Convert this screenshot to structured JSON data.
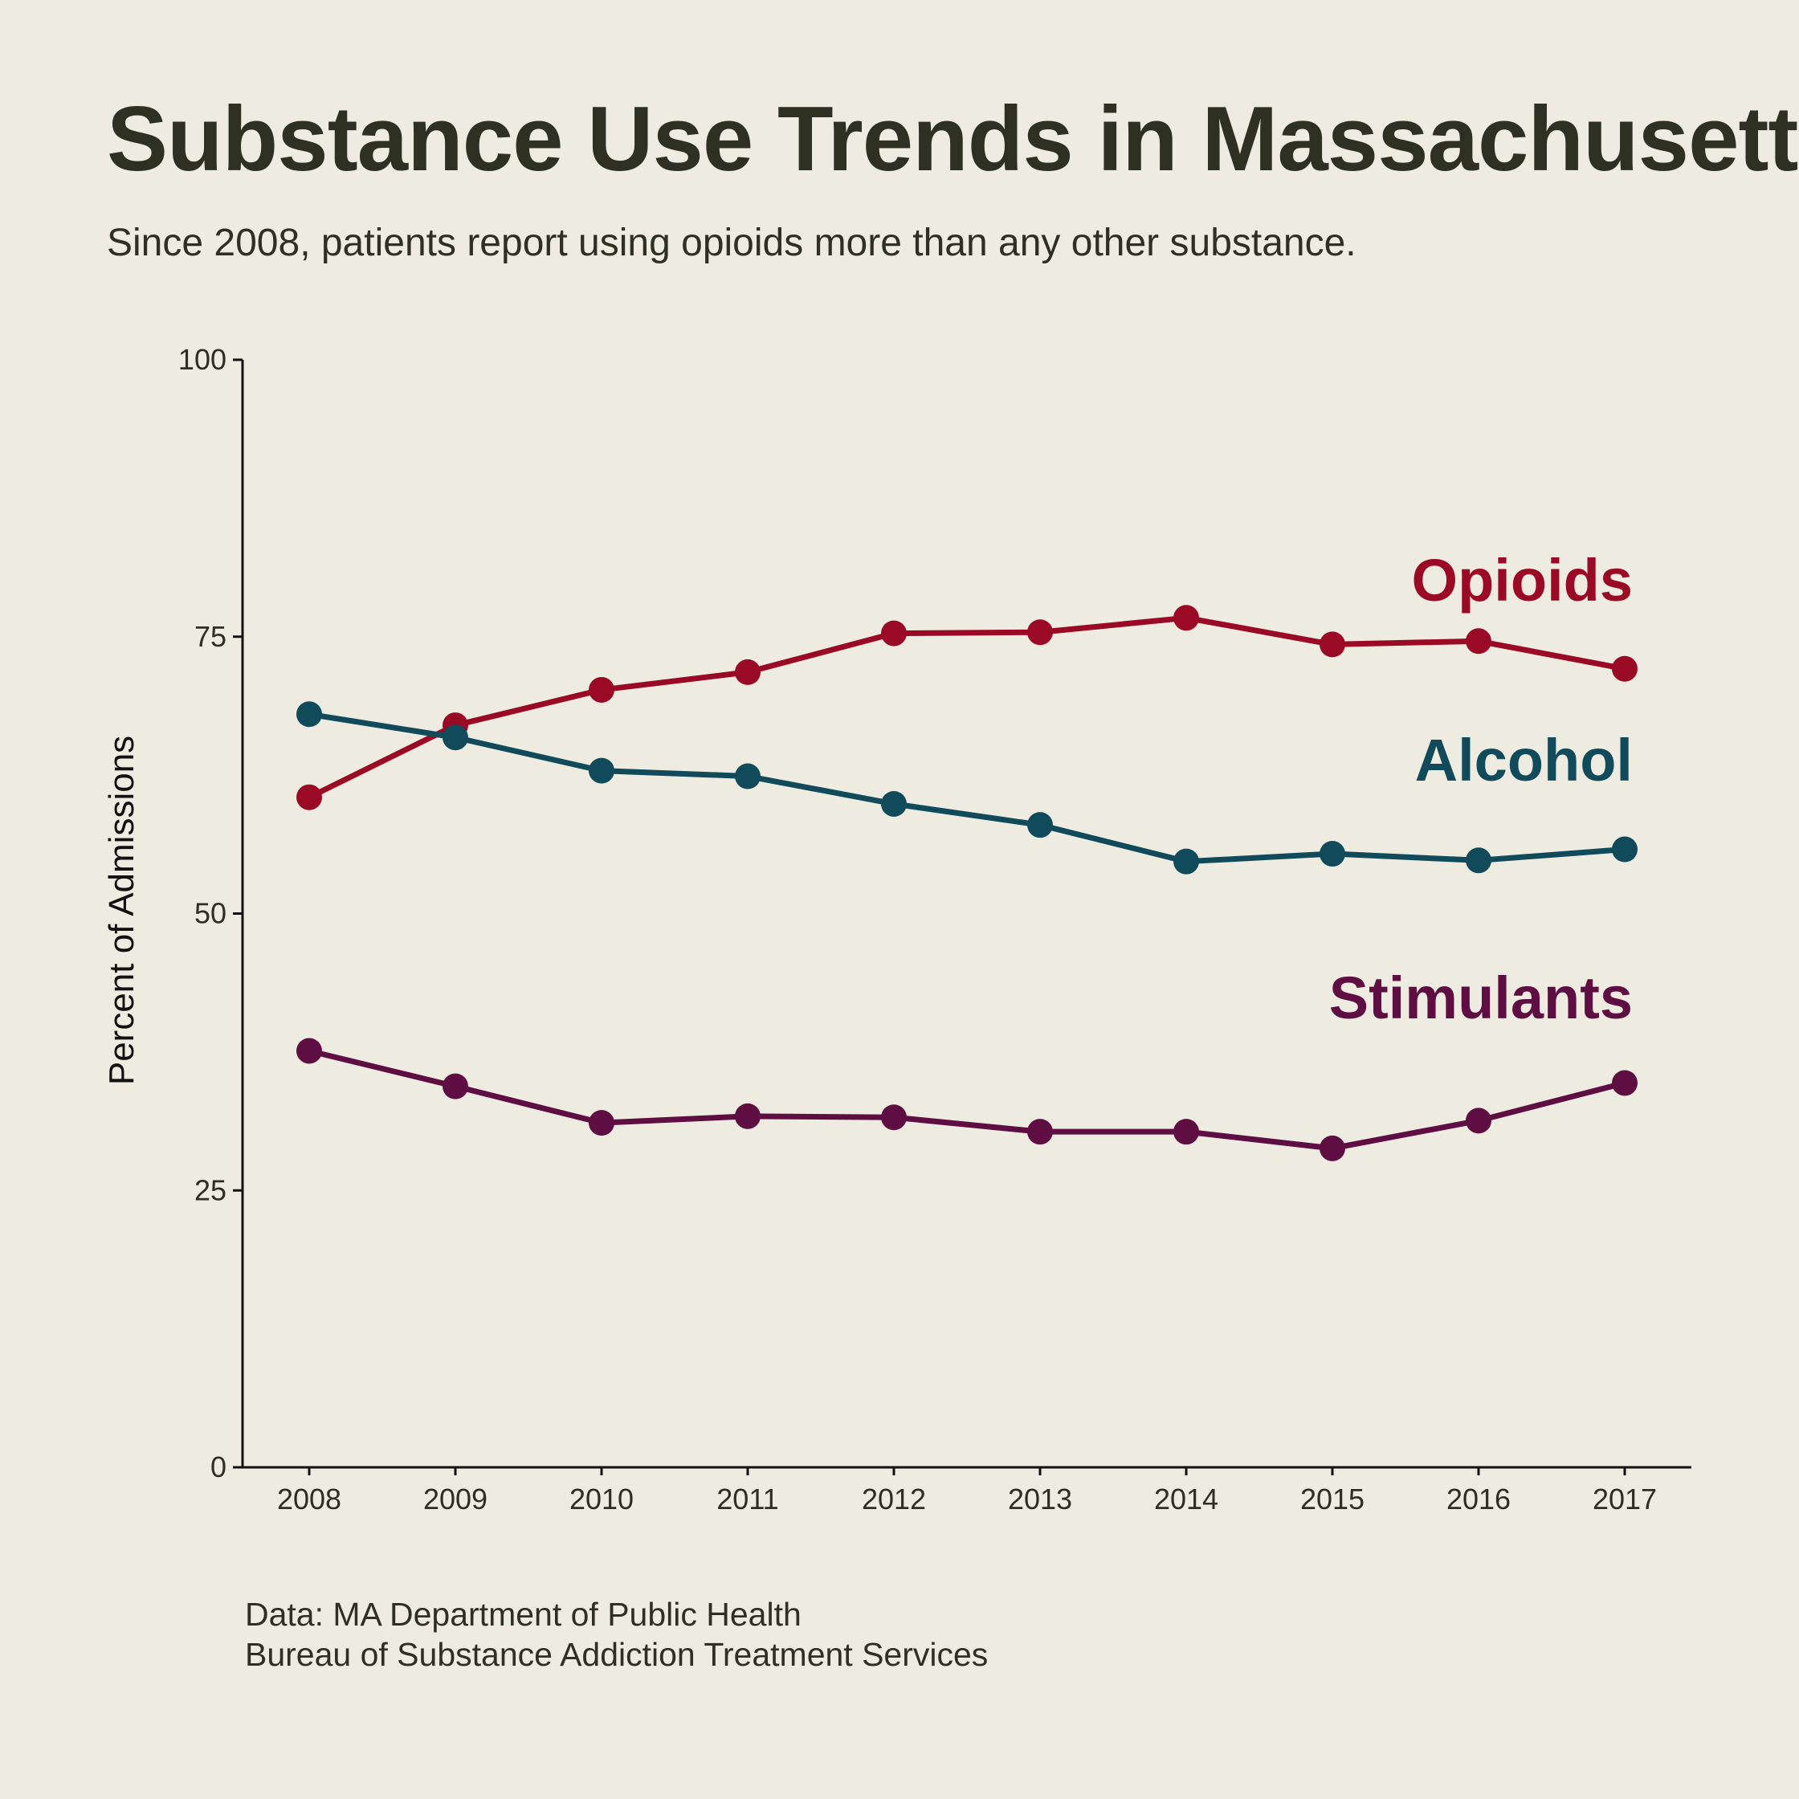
{
  "title": "Substance Use Trends in Massachusetts",
  "subtitle": "Since 2008, patients report using opioids more than any other substance.",
  "source": {
    "line1": "Data: MA Department of Public Health",
    "line2": "Bureau of Substance Addiction Treatment Services"
  },
  "chart_data": {
    "type": "line",
    "title": "Substance Use Trends in Massachusetts",
    "subtitle": "Since 2008, patients report using opioids more than any other substance.",
    "xlabel": "",
    "ylabel": "Percent of Admissions",
    "ylim": [
      0,
      100
    ],
    "yticks": [
      0,
      25,
      50,
      75,
      100
    ],
    "x": [
      "2008",
      "2009",
      "2010",
      "2011",
      "2012",
      "2013",
      "2014",
      "2015",
      "2016",
      "2017"
    ],
    "grid": false,
    "legend": "direct labels at right end of each series",
    "series": [
      {
        "name": "Opioids",
        "color": "#9a0a25",
        "values": [
          60.5,
          67.0,
          70.2,
          71.8,
          75.3,
          75.4,
          76.7,
          74.3,
          74.6,
          72.1
        ]
      },
      {
        "name": "Alcohol",
        "color": "#114a5a",
        "values": [
          68.0,
          65.9,
          62.9,
          62.4,
          59.9,
          58.0,
          54.7,
          55.4,
          54.8,
          55.8
        ]
      },
      {
        "name": "Stimulants",
        "color": "#5e0e42",
        "values": [
          37.6,
          34.4,
          31.1,
          31.7,
          31.6,
          30.3,
          30.3,
          28.8,
          31.3,
          34.7
        ]
      }
    ]
  }
}
